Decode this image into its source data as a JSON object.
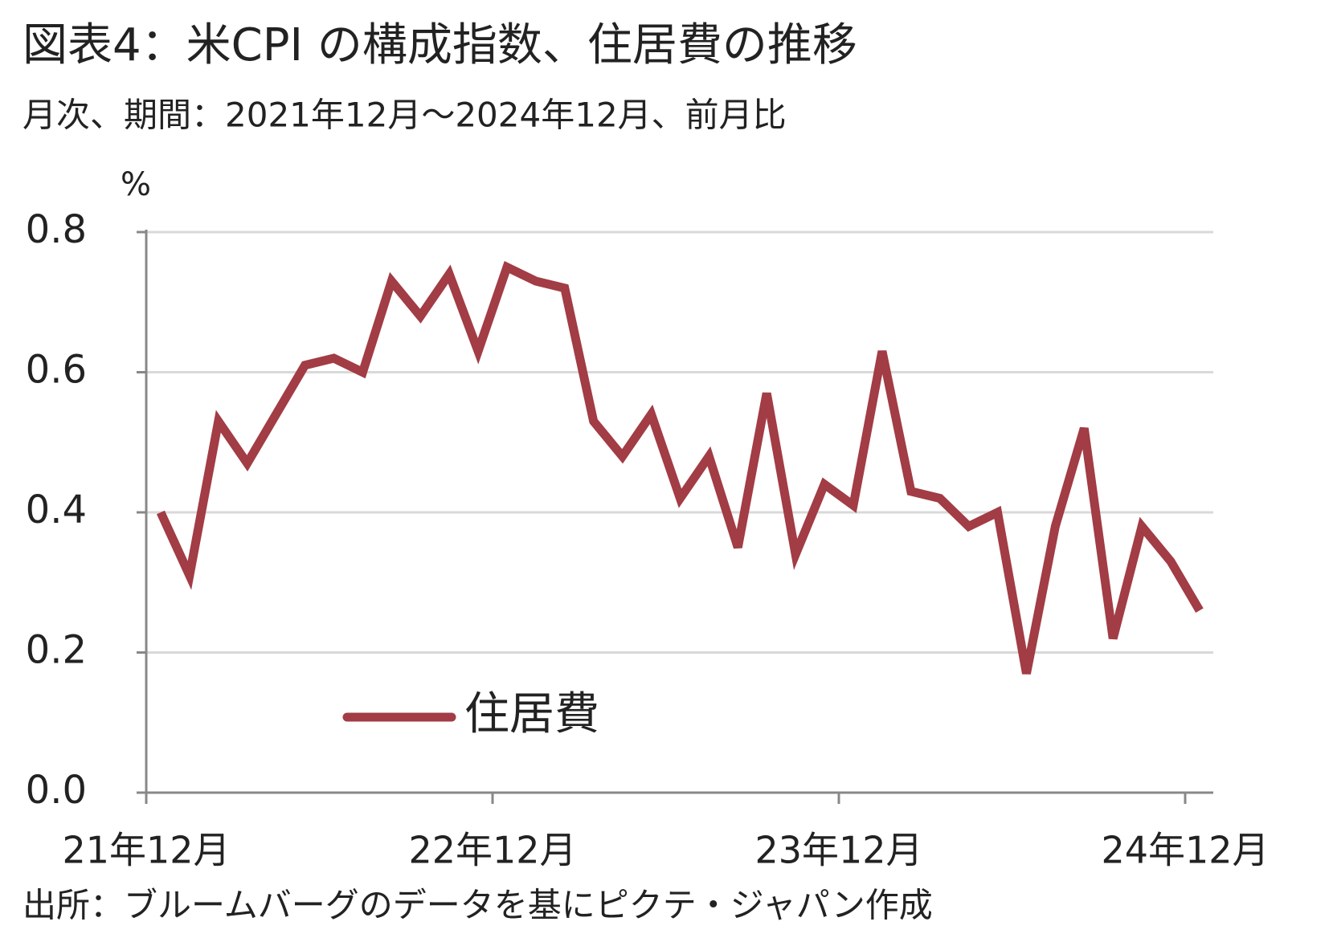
{
  "chart_data": {
    "type": "line",
    "title": "図表4：米CPI の構成指数、住居費の推移",
    "subtitle": "月次、期間：2021年12月～2024年12月、前月比",
    "y_unit": "%",
    "source": "出所：ブルームバーグのデータを基にピクテ・ジャパン作成",
    "categories": [
      "21年12月",
      null,
      null,
      null,
      null,
      null,
      null,
      null,
      null,
      null,
      null,
      null,
      "22年12月",
      null,
      null,
      null,
      null,
      null,
      null,
      null,
      null,
      null,
      null,
      null,
      "23年12月",
      null,
      null,
      null,
      null,
      null,
      null,
      null,
      null,
      null,
      null,
      null,
      "24年12月"
    ],
    "series": [
      {
        "name": "住居費",
        "color": "#a23c45",
        "values": [
          0.4,
          0.31,
          0.53,
          0.47,
          0.54,
          0.61,
          0.62,
          0.6,
          0.73,
          0.68,
          0.74,
          0.63,
          0.75,
          0.73,
          0.72,
          0.53,
          0.48,
          0.54,
          0.42,
          0.48,
          0.35,
          0.57,
          0.34,
          0.44,
          0.41,
          0.63,
          0.43,
          0.42,
          0.38,
          0.4,
          0.17,
          0.38,
          0.52,
          0.22,
          0.38,
          0.33,
          0.26
        ]
      }
    ],
    "ylim": [
      0,
      0.8
    ],
    "yticks": [
      {
        "value": 0,
        "label": "0.0"
      },
      0.2,
      0.4,
      0.6,
      0.8
    ],
    "grid": true,
    "legend": "lower left"
  }
}
